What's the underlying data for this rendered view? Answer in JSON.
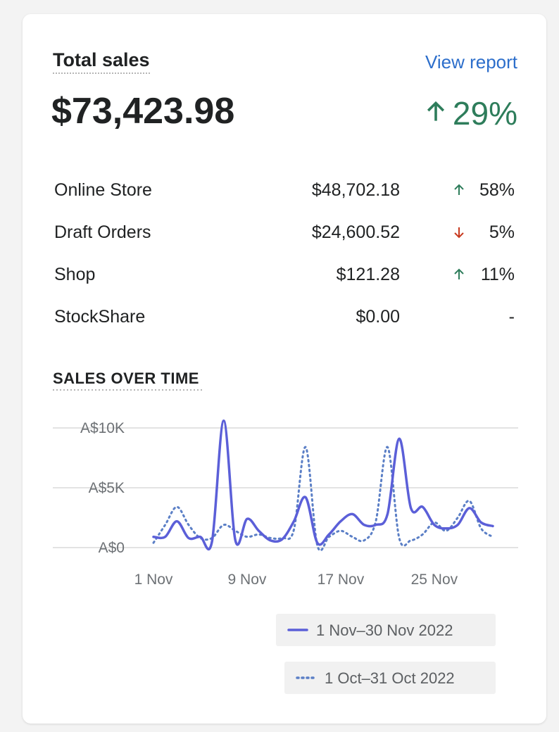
{
  "header": {
    "title": "Total sales",
    "link": "View report",
    "total": "$73,423.98",
    "change": "29%",
    "trend": "up"
  },
  "breakdown": {
    "rows": [
      {
        "channel": "Online Store",
        "amount": "$48,702.18",
        "change": "58%",
        "trend": "up"
      },
      {
        "channel": "Draft Orders",
        "amount": "$24,600.52",
        "change": "5%",
        "trend": "down"
      },
      {
        "channel": "Shop",
        "amount": "$121.28",
        "change": "11%",
        "trend": "up"
      },
      {
        "channel": "StockShare",
        "amount": "$0.00",
        "change": "-"
      }
    ]
  },
  "chart_data": {
    "type": "line",
    "title": "SALES OVER TIME",
    "categories": [
      "1 Nov",
      null,
      null,
      null,
      null,
      null,
      null,
      null,
      "9 Nov",
      null,
      null,
      null,
      null,
      null,
      null,
      null,
      "17 Nov",
      null,
      null,
      null,
      null,
      null,
      null,
      null,
      "25 Nov",
      null,
      null,
      null,
      null,
      null
    ],
    "series": [
      {
        "name": "1 Nov–30 Nov 2022",
        "color": "#5b5fd8",
        "dash": false,
        "values": [
          900,
          900,
          2200,
          800,
          900,
          500,
          10600,
          600,
          2400,
          1400,
          600,
          700,
          2200,
          4200,
          400,
          1100,
          2200,
          2800,
          1900,
          1900,
          2800,
          9100,
          3300,
          3400,
          1900,
          1600,
          1900,
          3300,
          2100,
          1800
        ]
      },
      {
        "name": "1 Oct–31 Oct 2022",
        "color": "#5b7fc6",
        "dash": true,
        "values": [
          400,
          1900,
          3400,
          1900,
          800,
          800,
          1900,
          1400,
          900,
          1100,
          800,
          800,
          1500,
          8400,
          200,
          900,
          1400,
          900,
          600,
          2200,
          8400,
          800,
          600,
          1100,
          2100,
          1400,
          2500,
          3900,
          1600,
          900
        ]
      }
    ],
    "ylim": [
      0,
      11000
    ],
    "yticks": [
      {
        "value": 0,
        "label": "A$0"
      },
      {
        "value": 5000,
        "label": "A$5K"
      },
      {
        "value": 10000,
        "label": "A$10K"
      }
    ],
    "grid": true
  }
}
